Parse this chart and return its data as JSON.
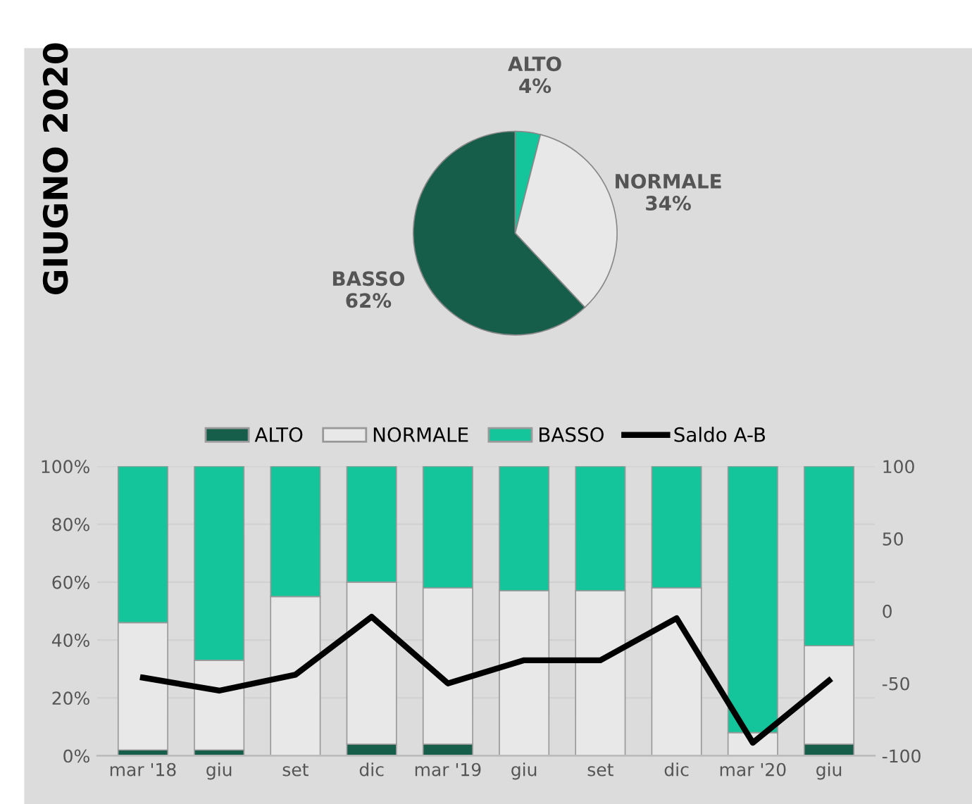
{
  "chart_data": [
    {
      "type": "pie",
      "title": "GIUGNO 2020",
      "categories": [
        "ALTO",
        "NORMALE",
        "BASSO"
      ],
      "values": [
        4,
        34,
        62
      ],
      "colors": [
        "#14c49a",
        "#e8e8e8",
        "#175e4a"
      ],
      "value_labels": [
        "4%",
        "34%",
        "62%"
      ]
    },
    {
      "type": "bar",
      "stacked": true,
      "categories": [
        "mar '18",
        "giu",
        "set",
        "dic",
        "mar '19",
        "giu",
        "set",
        "dic",
        "mar '20",
        "giu"
      ],
      "series": [
        {
          "name": "ALTO",
          "color": "#175e4a",
          "values": [
            2,
            2,
            0,
            4,
            4,
            0,
            0,
            0,
            0,
            4
          ]
        },
        {
          "name": "NORMALE",
          "color": "#e8e8e8",
          "values": [
            44,
            31,
            55,
            56,
            54,
            57,
            57,
            58,
            8,
            34
          ]
        },
        {
          "name": "BASSO",
          "color": "#14c49a",
          "values": [
            54,
            67,
            45,
            40,
            42,
            43,
            43,
            42,
            92,
            62
          ]
        },
        {
          "name": "Saldo A-B",
          "type": "line",
          "axis": "y2",
          "color": "#000000",
          "values": [
            -46,
            -55,
            -44,
            -4,
            -50,
            -34,
            -34,
            -5,
            -91,
            -48
          ]
        }
      ],
      "ylim": [
        0,
        100
      ],
      "yticks": [
        {
          "value": 0,
          "label": "0%"
        },
        {
          "value": 20,
          "label": "20%"
        },
        {
          "value": 40,
          "label": "40%"
        },
        {
          "value": 60,
          "label": "60%"
        },
        {
          "value": 80,
          "label": "80%"
        },
        {
          "value": 100,
          "label": "100%"
        }
      ],
      "y2lim": [
        -100,
        100
      ],
      "y2ticks": [
        -100,
        -50,
        0,
        50,
        100
      ],
      "grid": "y",
      "legend": "top",
      "marker": "none",
      "line_style": "solid"
    }
  ]
}
